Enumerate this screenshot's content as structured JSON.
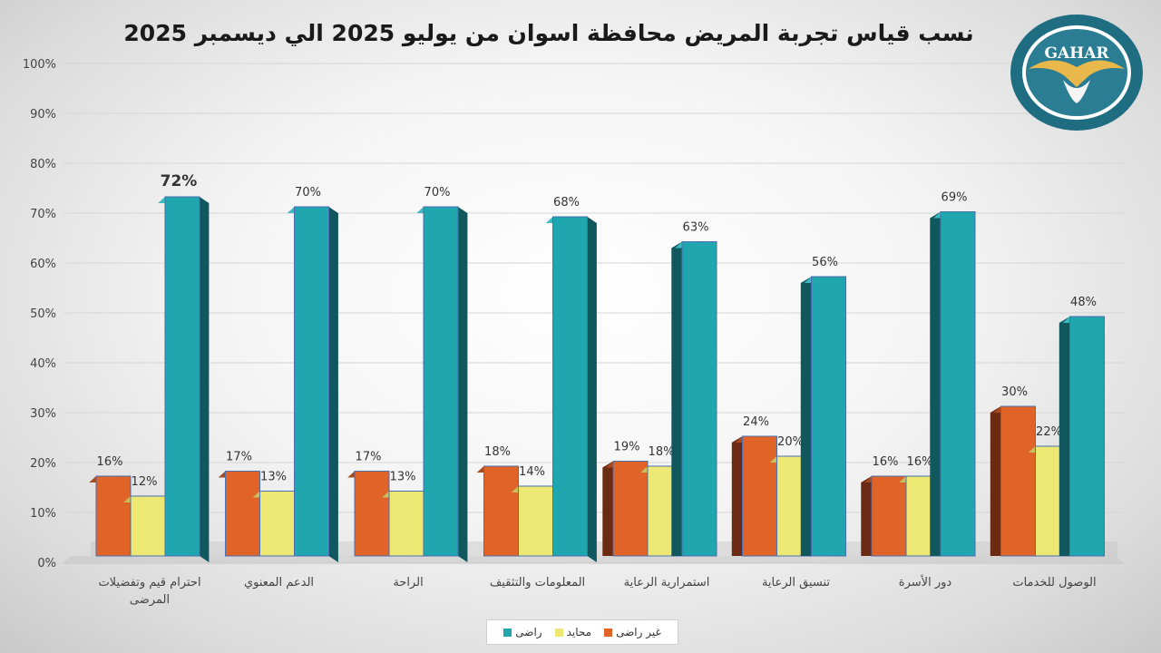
{
  "title": "نسب قياس تجربة المريض محافظة اسوان من يوليو 2025 الي ديسمبر 2025",
  "logo": {
    "text": "GAHAR"
  },
  "colors": {
    "dissatisfied": "#E06428",
    "neutral": "#EDE874",
    "satisfied": "#1FA6AE"
  },
  "legend": [
    {
      "label": "غير راضى",
      "color": "#E06428"
    },
    {
      "label": "محايد",
      "color": "#EDE874"
    },
    {
      "label": "راضى",
      "color": "#1FA6AE"
    }
  ],
  "chart_data": {
    "type": "bar",
    "title": "نسب قياس تجربة المريض محافظة اسوان من يوليو 2025 الي ديسمبر 2025",
    "categories": [
      [
        "احترام قيم وتفضيلات",
        "المرضى"
      ],
      [
        "الدعم المعنوي"
      ],
      [
        "الراحة"
      ],
      [
        "المعلومات والتثقيف"
      ],
      [
        "استمرارية الرعاية"
      ],
      [
        "تنسيق الرعاية"
      ],
      [
        "دور الأسرة"
      ],
      [
        "الوصول للخدمات"
      ]
    ],
    "series": [
      {
        "name": "غير راضى",
        "values": [
          16,
          17,
          17,
          18,
          19,
          24,
          16,
          30
        ],
        "labels": [
          "16%",
          "17%",
          "17%",
          "18%",
          "19%",
          "24%",
          "16%",
          "30%"
        ]
      },
      {
        "name": "محايد",
        "values": [
          12,
          13,
          13,
          14,
          18,
          20,
          16,
          22
        ],
        "labels": [
          "12%",
          "13%",
          "13%",
          "14%",
          "18%",
          "20%",
          "16%",
          "22%"
        ]
      },
      {
        "name": "راضى",
        "values": [
          72,
          70,
          70,
          68,
          63,
          56,
          69,
          48
        ],
        "labels": [
          "72%",
          "70%",
          "70%",
          "68%",
          "63%",
          "56%",
          "69%",
          "48%"
        ]
      }
    ],
    "yticks": [
      "0%",
      "10%",
      "20%",
      "30%",
      "40%",
      "50%",
      "60%",
      "70%",
      "80%",
      "90%",
      "100%"
    ],
    "ylim": [
      0,
      100
    ],
    "grid": true,
    "legend_position": "bottom",
    "highlight_label": "72%"
  }
}
